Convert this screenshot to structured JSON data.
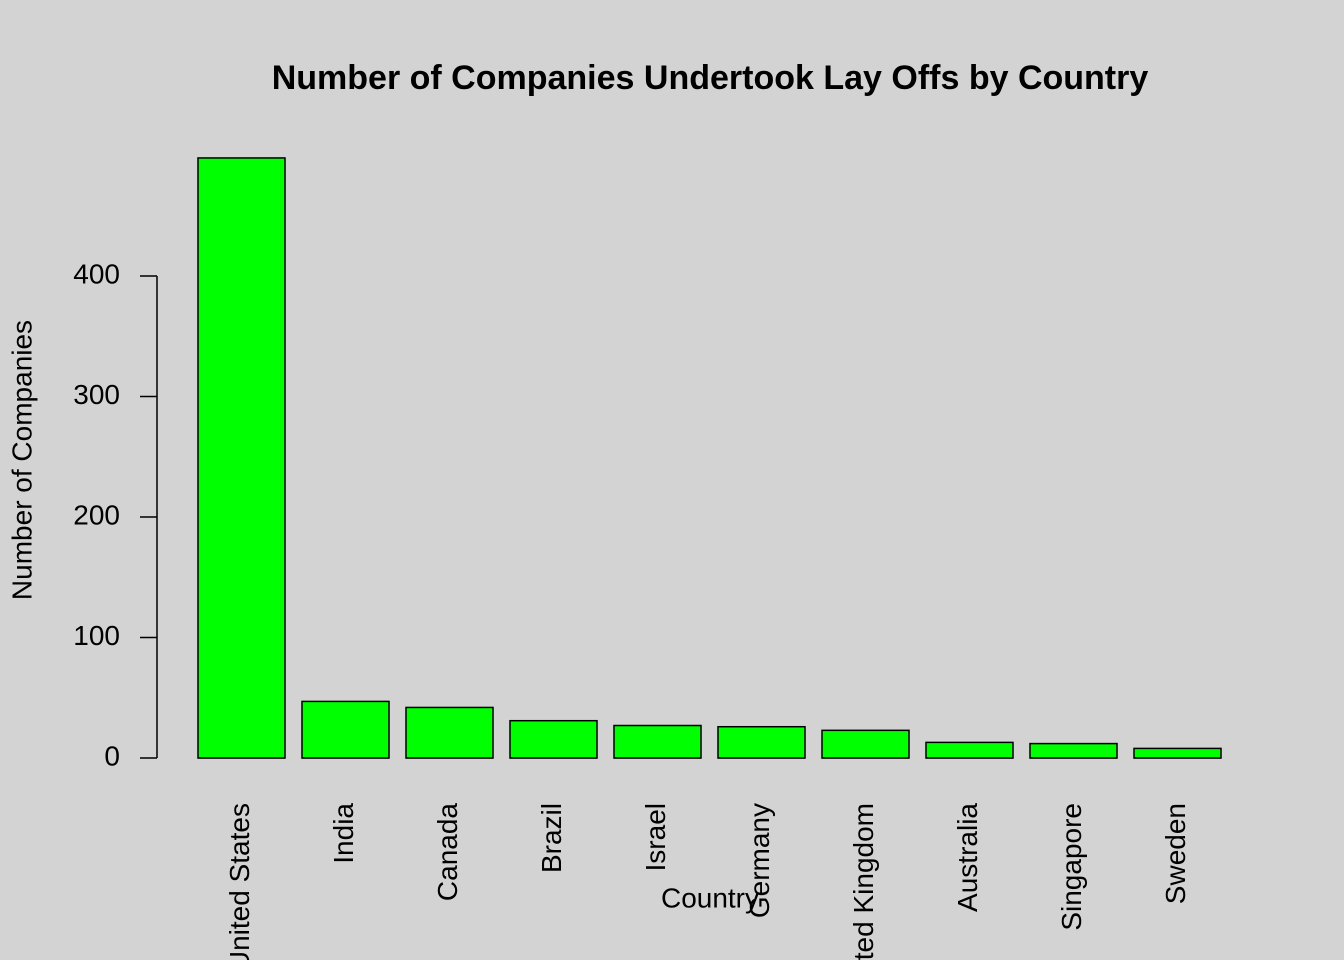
{
  "chart_data": {
    "type": "bar",
    "title": "Number of Companies Undertook Lay Offs by Country",
    "x_label": "Country",
    "y_label": "Number of Companies",
    "categories": [
      "United States",
      "India",
      "Canada",
      "Brazil",
      "Israel",
      "Germany",
      "United Kingdom",
      "Australia",
      "Singapore",
      "Sweden"
    ],
    "values": [
      498,
      47,
      42,
      31,
      27,
      26,
      23,
      13,
      12,
      8
    ],
    "color": "#00ff00",
    "ylim": [
      -20,
      518
    ],
    "yticks": [
      0,
      100,
      200,
      300,
      400
    ]
  }
}
